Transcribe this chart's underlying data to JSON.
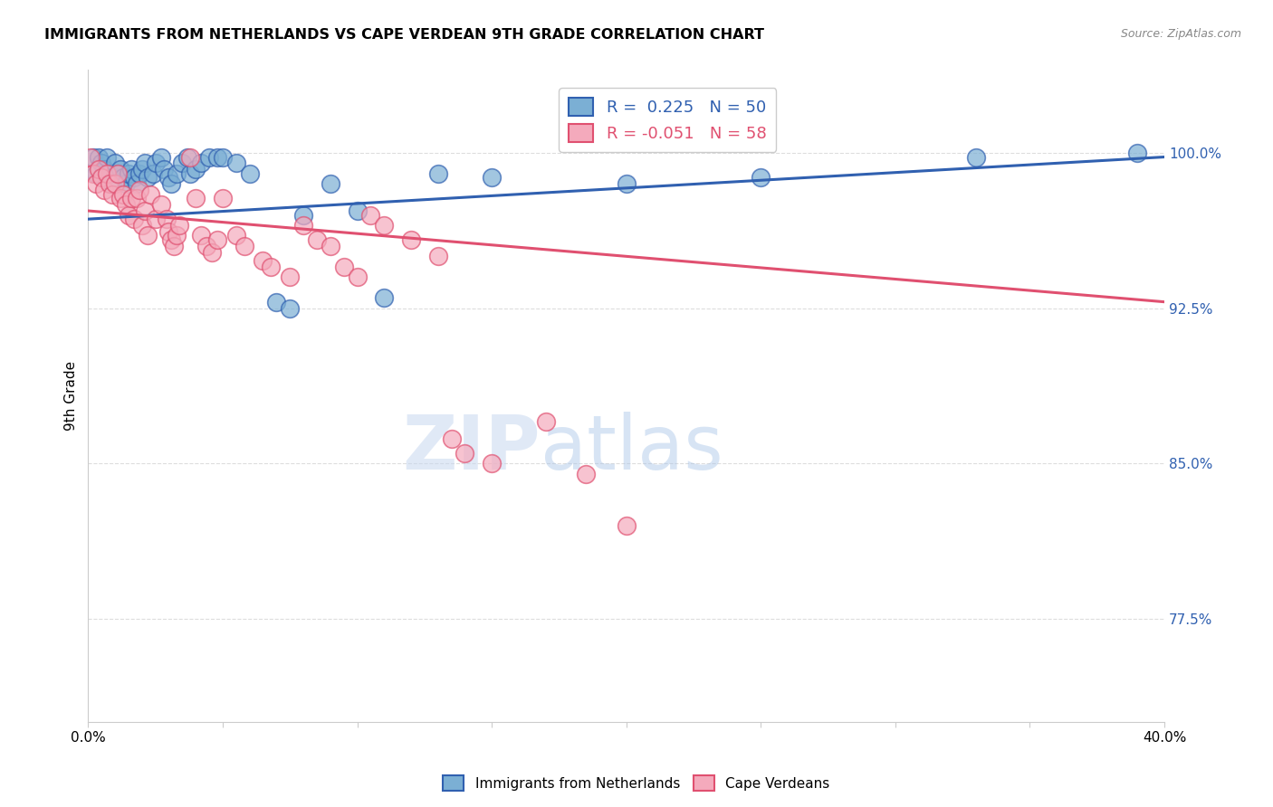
{
  "title": "IMMIGRANTS FROM NETHERLANDS VS CAPE VERDEAN 9TH GRADE CORRELATION CHART",
  "source": "Source: ZipAtlas.com",
  "ylabel": "9th Grade",
  "y_ticks": [
    0.775,
    0.85,
    0.925,
    1.0
  ],
  "y_tick_labels": [
    "77.5%",
    "85.0%",
    "92.5%",
    "100.0%"
  ],
  "xlim": [
    0.0,
    0.4
  ],
  "ylim": [
    0.725,
    1.04
  ],
  "legend_blue_r": "0.225",
  "legend_blue_n": "50",
  "legend_pink_r": "-0.051",
  "legend_pink_n": "58",
  "blue_color": "#7BAFD4",
  "pink_color": "#F4AABC",
  "blue_line_color": "#3060B0",
  "pink_line_color": "#E05070",
  "blue_scatter": [
    [
      0.002,
      0.998
    ],
    [
      0.003,
      0.99
    ],
    [
      0.004,
      0.998
    ],
    [
      0.005,
      0.995
    ],
    [
      0.006,
      0.992
    ],
    [
      0.007,
      0.998
    ],
    [
      0.008,
      0.99
    ],
    [
      0.009,
      0.985
    ],
    [
      0.01,
      0.995
    ],
    [
      0.011,
      0.99
    ],
    [
      0.012,
      0.992
    ],
    [
      0.013,
      0.988
    ],
    [
      0.014,
      0.985
    ],
    [
      0.015,
      0.99
    ],
    [
      0.016,
      0.992
    ],
    [
      0.017,
      0.988
    ],
    [
      0.018,
      0.985
    ],
    [
      0.019,
      0.99
    ],
    [
      0.02,
      0.992
    ],
    [
      0.021,
      0.995
    ],
    [
      0.022,
      0.988
    ],
    [
      0.024,
      0.99
    ],
    [
      0.025,
      0.995
    ],
    [
      0.027,
      0.998
    ],
    [
      0.028,
      0.992
    ],
    [
      0.03,
      0.988
    ],
    [
      0.031,
      0.985
    ],
    [
      0.033,
      0.99
    ],
    [
      0.035,
      0.995
    ],
    [
      0.037,
      0.998
    ],
    [
      0.038,
      0.99
    ],
    [
      0.04,
      0.992
    ],
    [
      0.042,
      0.995
    ],
    [
      0.045,
      0.998
    ],
    [
      0.048,
      0.998
    ],
    [
      0.05,
      0.998
    ],
    [
      0.055,
      0.995
    ],
    [
      0.06,
      0.99
    ],
    [
      0.07,
      0.928
    ],
    [
      0.075,
      0.925
    ],
    [
      0.08,
      0.97
    ],
    [
      0.09,
      0.985
    ],
    [
      0.1,
      0.972
    ],
    [
      0.11,
      0.93
    ],
    [
      0.13,
      0.99
    ],
    [
      0.15,
      0.988
    ],
    [
      0.2,
      0.985
    ],
    [
      0.25,
      0.988
    ],
    [
      0.33,
      0.998
    ],
    [
      0.39,
      1.0
    ]
  ],
  "pink_scatter": [
    [
      0.001,
      0.998
    ],
    [
      0.002,
      0.99
    ],
    [
      0.003,
      0.985
    ],
    [
      0.004,
      0.992
    ],
    [
      0.005,
      0.988
    ],
    [
      0.006,
      0.982
    ],
    [
      0.007,
      0.99
    ],
    [
      0.008,
      0.985
    ],
    [
      0.009,
      0.98
    ],
    [
      0.01,
      0.985
    ],
    [
      0.011,
      0.99
    ],
    [
      0.012,
      0.978
    ],
    [
      0.013,
      0.98
    ],
    [
      0.014,
      0.975
    ],
    [
      0.015,
      0.97
    ],
    [
      0.016,
      0.978
    ],
    [
      0.017,
      0.968
    ],
    [
      0.018,
      0.978
    ],
    [
      0.019,
      0.982
    ],
    [
      0.02,
      0.965
    ],
    [
      0.021,
      0.972
    ],
    [
      0.022,
      0.96
    ],
    [
      0.023,
      0.98
    ],
    [
      0.025,
      0.968
    ],
    [
      0.027,
      0.975
    ],
    [
      0.029,
      0.968
    ],
    [
      0.03,
      0.962
    ],
    [
      0.031,
      0.958
    ],
    [
      0.032,
      0.955
    ],
    [
      0.033,
      0.96
    ],
    [
      0.034,
      0.965
    ],
    [
      0.038,
      0.998
    ],
    [
      0.04,
      0.978
    ],
    [
      0.042,
      0.96
    ],
    [
      0.044,
      0.955
    ],
    [
      0.046,
      0.952
    ],
    [
      0.048,
      0.958
    ],
    [
      0.05,
      0.978
    ],
    [
      0.055,
      0.96
    ],
    [
      0.058,
      0.955
    ],
    [
      0.065,
      0.948
    ],
    [
      0.068,
      0.945
    ],
    [
      0.075,
      0.94
    ],
    [
      0.08,
      0.965
    ],
    [
      0.085,
      0.958
    ],
    [
      0.09,
      0.955
    ],
    [
      0.095,
      0.945
    ],
    [
      0.1,
      0.94
    ],
    [
      0.105,
      0.97
    ],
    [
      0.11,
      0.965
    ],
    [
      0.12,
      0.958
    ],
    [
      0.13,
      0.95
    ],
    [
      0.135,
      0.862
    ],
    [
      0.14,
      0.855
    ],
    [
      0.15,
      0.85
    ],
    [
      0.17,
      0.87
    ],
    [
      0.185,
      0.845
    ],
    [
      0.2,
      0.82
    ]
  ],
  "watermark_zip": "ZIP",
  "watermark_atlas": "atlas",
  "background_color": "#FFFFFF",
  "grid_color": "#DDDDDD"
}
